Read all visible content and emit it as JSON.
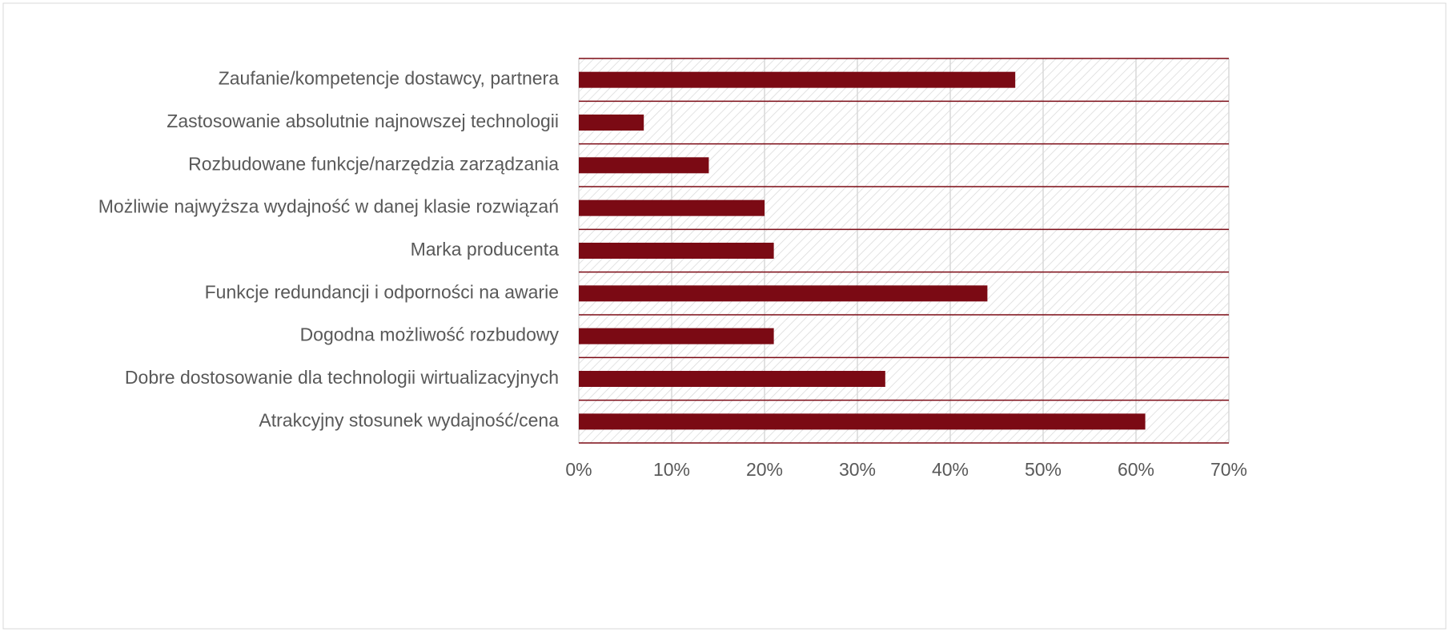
{
  "chart_data": {
    "type": "barh",
    "categories": [
      "Zaufanie/kompetencje dostawcy, partnera",
      "Zastosowanie absolutnie najnowszej technologii",
      "Rozbudowane funkcje/narzędzia zarządzania",
      "Możliwie najwyższa wydajność w danej klasie rozwiązań",
      "Marka producenta",
      "Funkcje redundancji i odporności na awarie",
      "Dogodna możliwość rozbudowy",
      "Dobre dostosowanie dla technologii wirtualizacyjnych",
      "Atrakcyjny stosunek wydajność/cena"
    ],
    "values": [
      47,
      7,
      14,
      20,
      21,
      44,
      21,
      33,
      61
    ],
    "color": "#7b0a14",
    "xlim": [
      0,
      70
    ],
    "xticks": [
      {
        "value": 0,
        "label": "0%"
      },
      {
        "value": 10,
        "label": "10%"
      },
      {
        "value": 20,
        "label": "20%"
      },
      {
        "value": 30,
        "label": "30%"
      },
      {
        "value": 40,
        "label": "40%"
      },
      {
        "value": 50,
        "label": "50%"
      },
      {
        "value": 60,
        "label": "60%"
      },
      {
        "value": 70,
        "label": "70%"
      }
    ],
    "grid": true
  }
}
